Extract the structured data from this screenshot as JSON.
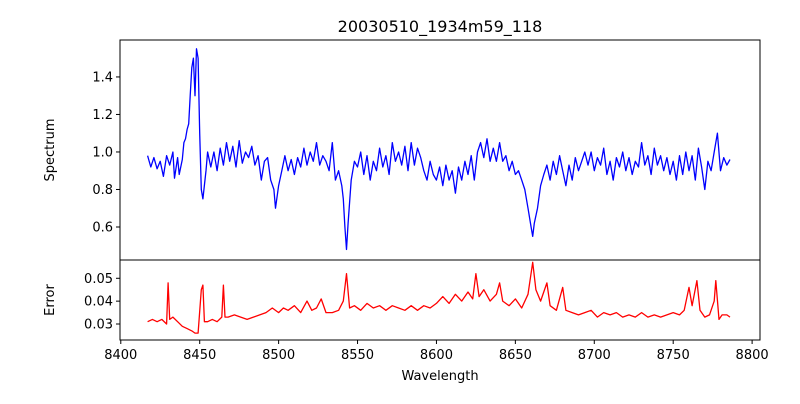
{
  "chart_data": [
    {
      "type": "line",
      "title": "20030510_1934m59_118",
      "xlabel": "",
      "ylabel": "Spectrum",
      "xlim": [
        8399.5,
        8805
      ],
      "ylim": [
        0.424,
        1.597
      ],
      "yticks": [
        0.6,
        0.8,
        1.0,
        1.2,
        1.4
      ],
      "ytick_labels": [
        "0.6",
        "0.8",
        "1.0",
        "1.2",
        "1.4"
      ],
      "grid": false,
      "series": [
        {
          "name": "Spectrum",
          "color": "#0000ff",
          "x": [
            8417,
            8419,
            8421,
            8423,
            8425,
            8427,
            8429,
            8431,
            8433,
            8434,
            8436,
            8437,
            8439,
            8440,
            8441,
            8442,
            8443,
            8444,
            8445,
            8446,
            8447,
            8448,
            8449,
            8450,
            8451,
            8452,
            8454,
            8455,
            8457,
            8459,
            8461,
            8463,
            8465,
            8467,
            8469,
            8471,
            8473,
            8475,
            8477,
            8479,
            8481,
            8483,
            8485,
            8487,
            8489,
            8491,
            8493,
            8495,
            8497,
            8498,
            8500,
            8502,
            8504,
            8506,
            8508,
            8510,
            8512,
            8514,
            8516,
            8518,
            8520,
            8522,
            8524,
            8526,
            8528,
            8530,
            8532,
            8534,
            8536,
            8538,
            8540,
            8541,
            8542,
            8543,
            8544,
            8546,
            8548,
            8550,
            8552,
            8554,
            8556,
            8558,
            8560,
            8562,
            8564,
            8566,
            8568,
            8570,
            8572,
            8574,
            8576,
            8578,
            8580,
            8582,
            8584,
            8586,
            8588,
            8590,
            8592,
            8594,
            8596,
            8598,
            8600,
            8602,
            8604,
            8606,
            8608,
            8610,
            8612,
            8614,
            8616,
            8618,
            8620,
            8622,
            8624,
            8626,
            8628,
            8630,
            8632,
            8634,
            8636,
            8638,
            8640,
            8642,
            8644,
            8646,
            8648,
            8650,
            8652,
            8654,
            8656,
            8658,
            8660,
            8661,
            8662,
            8664,
            8666,
            8668,
            8670,
            8672,
            8674,
            8676,
            8678,
            8680,
            8682,
            8684,
            8686,
            8688,
            8690,
            8692,
            8694,
            8696,
            8698,
            8700,
            8702,
            8704,
            8706,
            8708,
            8710,
            8712,
            8714,
            8716,
            8718,
            8720,
            8722,
            8724,
            8726,
            8728,
            8730,
            8732,
            8734,
            8736,
            8738,
            8740,
            8742,
            8744,
            8746,
            8748,
            8750,
            8752,
            8754,
            8756,
            8758,
            8760,
            8762,
            8764,
            8766,
            8768,
            8770,
            8772,
            8774,
            8776,
            8778,
            8780,
            8782,
            8784,
            8786
          ],
          "y": [
            0.98,
            0.92,
            0.97,
            0.91,
            0.95,
            0.87,
            0.98,
            0.93,
            1.0,
            0.86,
            0.97,
            0.88,
            0.96,
            1.05,
            1.07,
            1.12,
            1.15,
            1.3,
            1.45,
            1.5,
            1.3,
            1.55,
            1.5,
            1.1,
            0.8,
            0.75,
            0.9,
            1.0,
            0.92,
            1.0,
            0.9,
            1.02,
            0.93,
            1.05,
            0.95,
            1.03,
            0.92,
            1.06,
            0.94,
            1.0,
            0.97,
            1.03,
            0.93,
            0.98,
            0.85,
            0.95,
            0.97,
            0.85,
            0.8,
            0.7,
            0.82,
            0.9,
            0.98,
            0.9,
            0.96,
            0.88,
            0.97,
            0.92,
            1.02,
            0.93,
            1.0,
            0.95,
            1.05,
            0.93,
            0.98,
            0.95,
            0.9,
            1.05,
            0.85,
            0.9,
            0.82,
            0.75,
            0.6,
            0.48,
            0.62,
            0.85,
            0.95,
            0.92,
            1.0,
            0.88,
            0.98,
            0.85,
            0.95,
            0.9,
            1.02,
            0.92,
            0.98,
            0.88,
            1.05,
            0.95,
            1.0,
            0.93,
            1.03,
            0.9,
            1.05,
            0.93,
            1.02,
            0.97,
            0.9,
            0.85,
            0.95,
            0.88,
            0.85,
            0.92,
            0.82,
            0.93,
            0.85,
            0.9,
            0.78,
            0.92,
            0.85,
            0.95,
            0.88,
            0.98,
            0.85,
            1.0,
            1.05,
            0.97,
            1.07,
            0.95,
            1.02,
            0.95,
            1.05,
            0.95,
            0.98,
            0.9,
            0.95,
            0.88,
            0.9,
            0.85,
            0.8,
            0.7,
            0.6,
            0.55,
            0.62,
            0.7,
            0.82,
            0.88,
            0.93,
            0.85,
            0.95,
            0.88,
            0.98,
            0.9,
            0.82,
            0.93,
            0.85,
            0.97,
            0.9,
            0.95,
            1.0,
            0.93,
            1.0,
            0.9,
            0.97,
            0.93,
            1.02,
            0.88,
            0.95,
            0.85,
            0.97,
            0.92,
            1.0,
            0.9,
            0.97,
            0.88,
            0.95,
            0.92,
            1.05,
            0.93,
            0.98,
            0.88,
            1.02,
            0.93,
            0.98,
            0.9,
            0.97,
            0.88,
            0.95,
            0.85,
            0.98,
            0.88,
            1.0,
            0.9,
            0.98,
            0.85,
            1.02,
            0.92,
            0.8,
            0.95,
            0.9,
            1.0,
            1.1,
            0.9,
            0.97,
            0.93,
            0.96
          ]
        }
      ]
    },
    {
      "type": "line",
      "xlabel": "Wavelength",
      "ylabel": "Error",
      "xlim": [
        8399.5,
        8805
      ],
      "ylim": [
        0.023,
        0.058
      ],
      "xticks": [
        8400,
        8450,
        8500,
        8550,
        8600,
        8650,
        8700,
        8750,
        8800
      ],
      "xtick_labels": [
        "8400",
        "8450",
        "8500",
        "8550",
        "8600",
        "8650",
        "8700",
        "8750",
        "8800"
      ],
      "yticks": [
        0.03,
        0.04,
        0.05
      ],
      "ytick_labels": [
        "0.03",
        "0.04",
        "0.05"
      ],
      "grid": false,
      "series": [
        {
          "name": "Error",
          "color": "#ff0000",
          "x": [
            8417,
            8420,
            8423,
            8426,
            8429,
            8430,
            8431,
            8433,
            8436,
            8439,
            8442,
            8445,
            8447,
            8449,
            8451,
            8452,
            8453,
            8455,
            8458,
            8461,
            8464,
            8465,
            8466,
            8468,
            8472,
            8476,
            8480,
            8484,
            8488,
            8492,
            8496,
            8500,
            8503,
            8506,
            8510,
            8514,
            8518,
            8521,
            8524,
            8527,
            8530,
            8534,
            8538,
            8541,
            8543,
            8545,
            8548,
            8552,
            8556,
            8560,
            8564,
            8568,
            8572,
            8576,
            8580,
            8584,
            8588,
            8592,
            8596,
            8600,
            8604,
            8608,
            8612,
            8616,
            8620,
            8623,
            8625,
            8627,
            8630,
            8634,
            8638,
            8640,
            8642,
            8646,
            8650,
            8654,
            8658,
            8661,
            8663,
            8666,
            8670,
            8672,
            8676,
            8680,
            8682,
            8686,
            8690,
            8694,
            8698,
            8702,
            8706,
            8710,
            8714,
            8718,
            8722,
            8726,
            8730,
            8734,
            8738,
            8742,
            8746,
            8750,
            8754,
            8757,
            8760,
            8762,
            8765,
            8767,
            8770,
            8773,
            8776,
            8777,
            8779,
            8781,
            8784,
            8786
          ],
          "y": [
            0.031,
            0.032,
            0.031,
            0.032,
            0.03,
            0.048,
            0.032,
            0.033,
            0.031,
            0.029,
            0.028,
            0.027,
            0.026,
            0.026,
            0.045,
            0.047,
            0.031,
            0.031,
            0.032,
            0.031,
            0.033,
            0.047,
            0.033,
            0.033,
            0.034,
            0.033,
            0.032,
            0.033,
            0.034,
            0.035,
            0.037,
            0.035,
            0.037,
            0.036,
            0.038,
            0.035,
            0.04,
            0.036,
            0.037,
            0.041,
            0.035,
            0.035,
            0.036,
            0.04,
            0.052,
            0.037,
            0.038,
            0.036,
            0.039,
            0.037,
            0.038,
            0.036,
            0.038,
            0.037,
            0.036,
            0.038,
            0.036,
            0.038,
            0.037,
            0.039,
            0.042,
            0.039,
            0.043,
            0.04,
            0.044,
            0.041,
            0.052,
            0.042,
            0.045,
            0.04,
            0.043,
            0.048,
            0.04,
            0.038,
            0.041,
            0.037,
            0.043,
            0.057,
            0.045,
            0.04,
            0.048,
            0.038,
            0.036,
            0.046,
            0.036,
            0.035,
            0.034,
            0.035,
            0.036,
            0.033,
            0.035,
            0.034,
            0.035,
            0.033,
            0.034,
            0.033,
            0.035,
            0.033,
            0.034,
            0.033,
            0.034,
            0.035,
            0.034,
            0.036,
            0.046,
            0.038,
            0.049,
            0.036,
            0.033,
            0.034,
            0.04,
            0.049,
            0.032,
            0.034,
            0.034,
            0.033
          ]
        }
      ]
    }
  ]
}
